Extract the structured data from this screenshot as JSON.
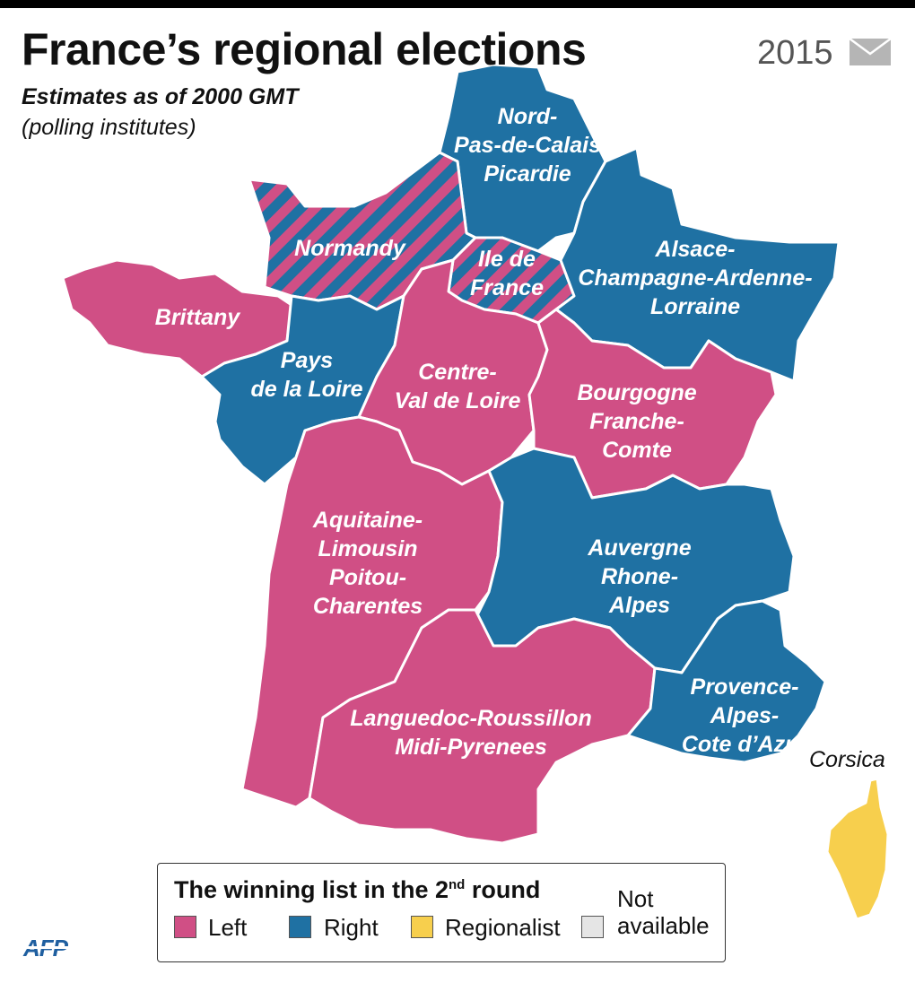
{
  "header": {
    "title": "France’s regional elections",
    "subtitle": "Estimates as of 2000 GMT",
    "source_note": "(polling institutes)",
    "year": "2015",
    "icon": "mail-envelope-icon"
  },
  "colors": {
    "left": "#d04f85",
    "right": "#1f71a3",
    "regionalist": "#f7cf4d",
    "not_available": "#e5e5e5",
    "border": "#ffffff"
  },
  "regions": [
    {
      "name_lines": [
        "Nord-",
        "Pas-de-Calais",
        "Picardie"
      ],
      "winner": "right"
    },
    {
      "name_lines": [
        "Normandy"
      ],
      "winner": "split-left-right"
    },
    {
      "name_lines": [
        "Ile de",
        "France"
      ],
      "winner": "split-left-right"
    },
    {
      "name_lines": [
        "Alsace-",
        "Champagne-Ardenne-",
        "Lorraine"
      ],
      "winner": "right"
    },
    {
      "name_lines": [
        "Brittany"
      ],
      "winner": "left"
    },
    {
      "name_lines": [
        "Pays",
        "de la Loire"
      ],
      "winner": "right"
    },
    {
      "name_lines": [
        "Centre-",
        "Val de Loire"
      ],
      "winner": "left"
    },
    {
      "name_lines": [
        "Bourgogne",
        "Franche-",
        "Comte"
      ],
      "winner": "left"
    },
    {
      "name_lines": [
        "Aquitaine-",
        "Limousin",
        "Poitou-",
        "Charentes"
      ],
      "winner": "left"
    },
    {
      "name_lines": [
        "Auvergne",
        "Rhone-",
        "Alpes"
      ],
      "winner": "right"
    },
    {
      "name_lines": [
        "Languedoc-Roussillon",
        "Midi-Pyrenees"
      ],
      "winner": "left"
    },
    {
      "name_lines": [
        "Provence-",
        "Alpes-",
        "Cote d’Azur"
      ],
      "winner": "right"
    },
    {
      "name_lines": [
        "Corsica"
      ],
      "winner": "regionalist"
    }
  ],
  "legend": {
    "title_main": "The winning list in the 2",
    "title_sup": "nd",
    "title_end": " round",
    "items": [
      {
        "label": "Left"
      },
      {
        "label": "Right"
      },
      {
        "label": "Regionalist"
      },
      {
        "label_line1": "Not",
        "label_line2": "available"
      }
    ]
  },
  "credit": "AFP"
}
